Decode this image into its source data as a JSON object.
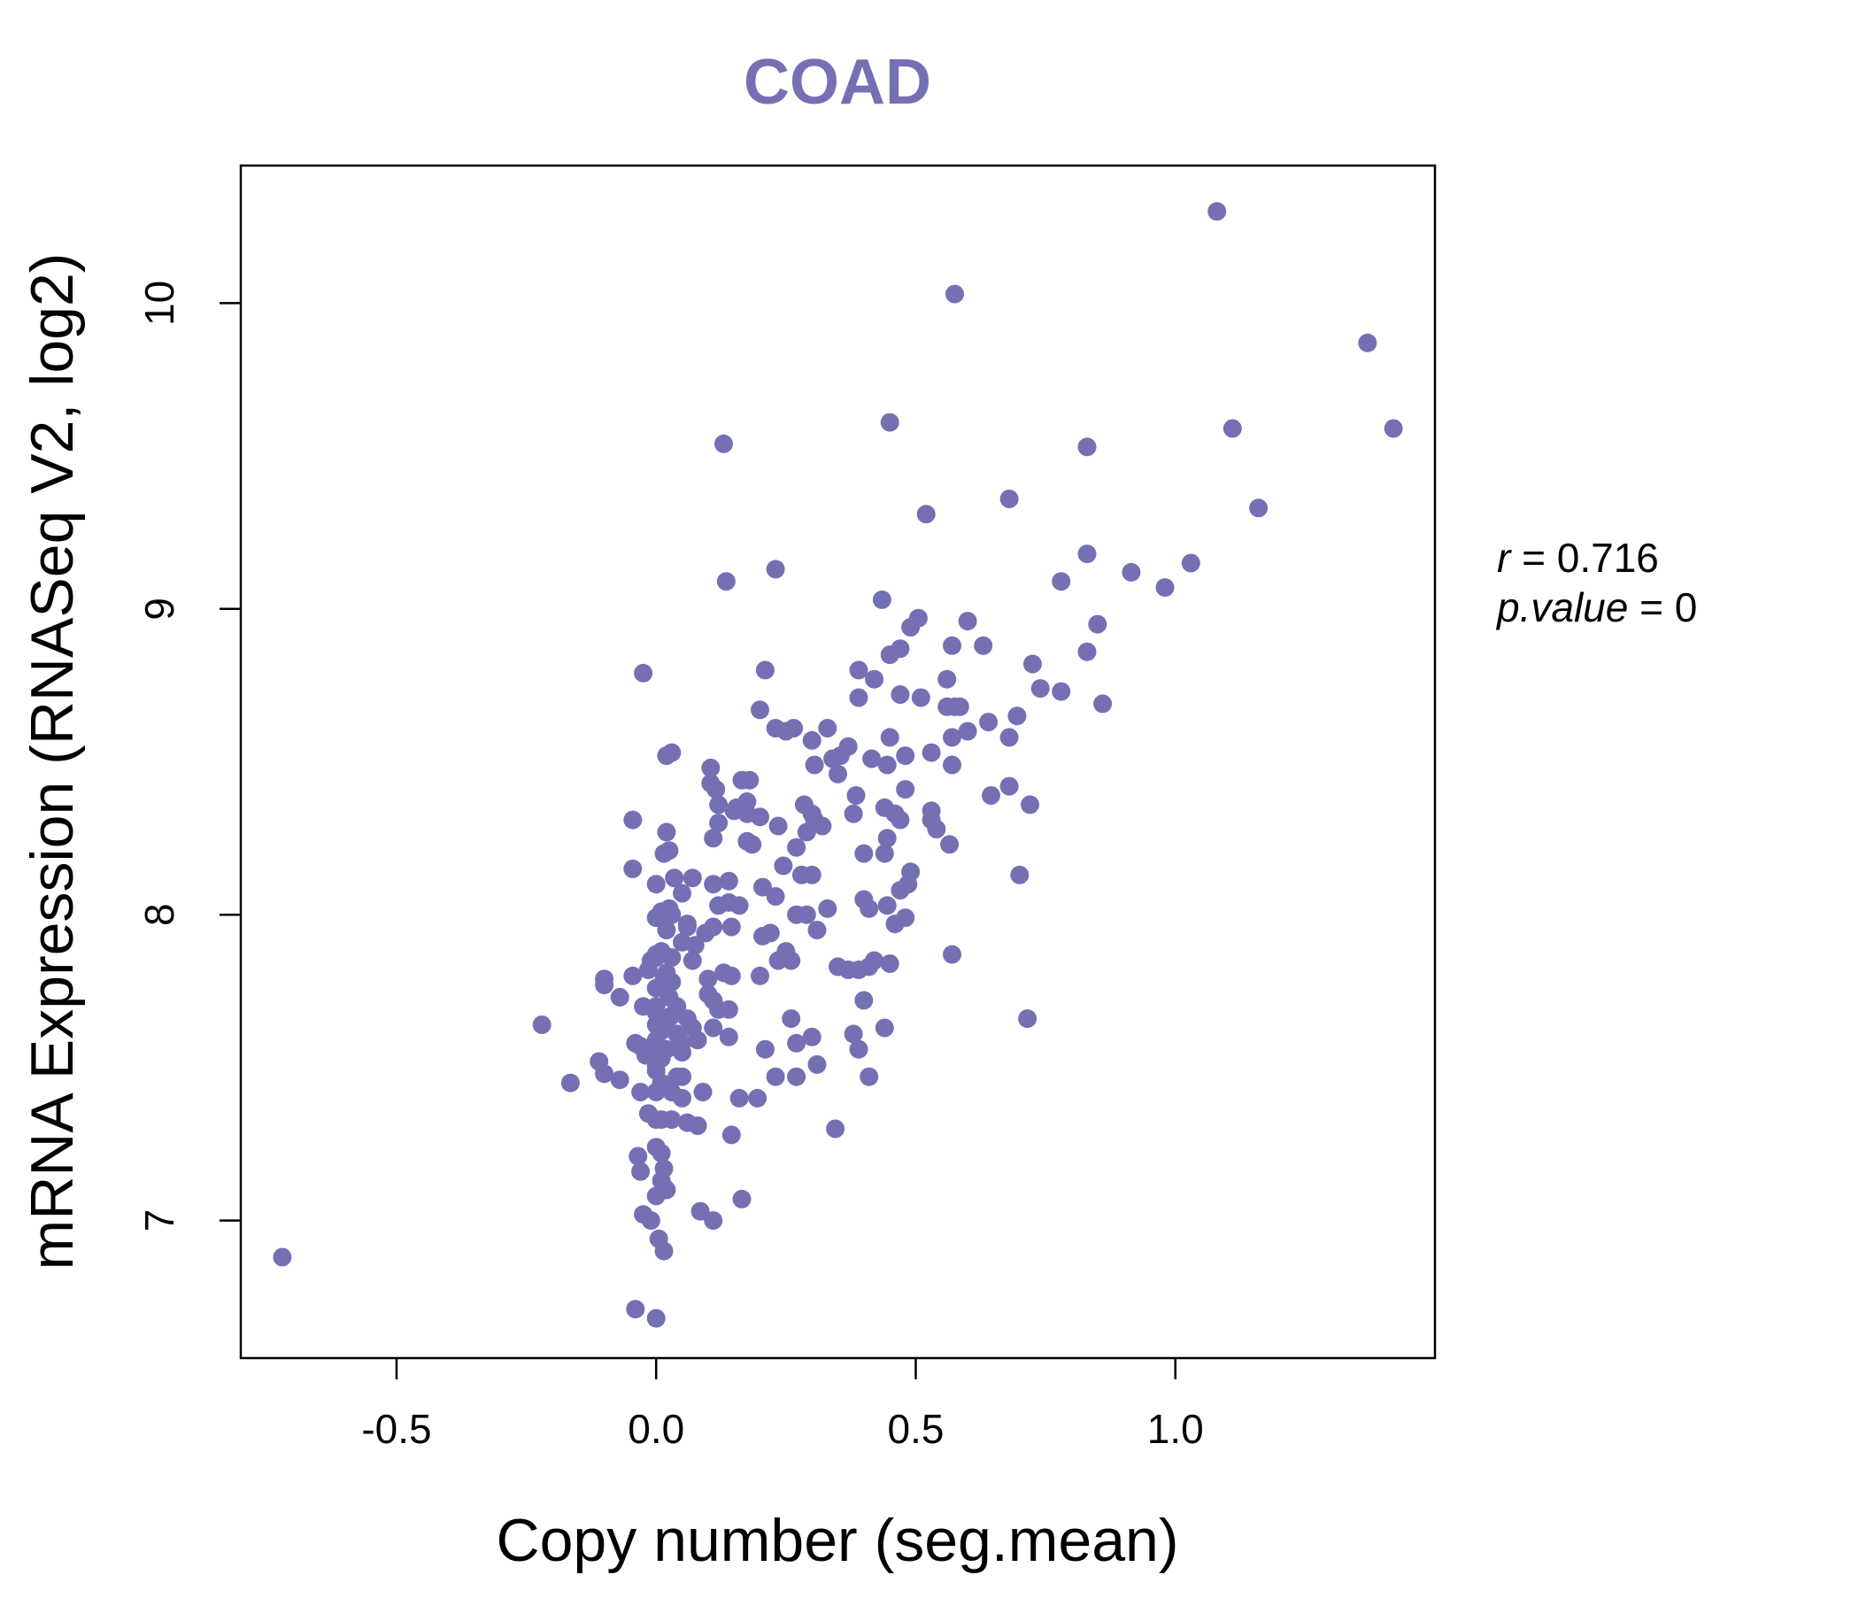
{
  "chart_data": {
    "type": "scatter",
    "title": "COAD",
    "xlabel": "Copy number (seg.mean)",
    "ylabel": "mRNA Expression (RNASeq V2, log2)",
    "xlim": [
      -0.8,
      1.5
    ],
    "ylim": [
      6.55,
      10.45
    ],
    "xticks": [
      -0.5,
      0.0,
      0.5,
      1.0
    ],
    "xtick_labels": [
      "-0.5",
      "0.0",
      "0.5",
      "1.0"
    ],
    "yticks": [
      7,
      8,
      9,
      10
    ],
    "ytick_labels": [
      "7",
      "8",
      "9",
      "10"
    ],
    "grid": false,
    "legend": "none",
    "color": "#7570b3",
    "stats": {
      "r_label": "r",
      "r_value": "0.716",
      "p_label": "p.value",
      "p_value": "0"
    },
    "points": [
      [
        1.08,
        10.3
      ],
      [
        0.575,
        10.03
      ],
      [
        1.37,
        9.87
      ],
      [
        0.45,
        9.61
      ],
      [
        1.11,
        9.59
      ],
      [
        1.42,
        9.59
      ],
      [
        0.13,
        9.54
      ],
      [
        0.83,
        9.53
      ],
      [
        0.68,
        9.36
      ],
      [
        1.16,
        9.33
      ],
      [
        0.52,
        9.31
      ],
      [
        0.83,
        9.18
      ],
      [
        1.03,
        9.15
      ],
      [
        0.23,
        9.13
      ],
      [
        0.915,
        9.12
      ],
      [
        0.135,
        9.09
      ],
      [
        0.78,
        9.09
      ],
      [
        0.98,
        9.07
      ],
      [
        0.435,
        9.03
      ],
      [
        0.505,
        8.97
      ],
      [
        0.6,
        8.96
      ],
      [
        0.85,
        8.95
      ],
      [
        0.49,
        8.94
      ],
      [
        0.57,
        8.88
      ],
      [
        0.63,
        8.88
      ],
      [
        0.47,
        8.87
      ],
      [
        0.45,
        8.85
      ],
      [
        0.83,
        8.86
      ],
      [
        0.39,
        8.8
      ],
      [
        0.21,
        8.8
      ],
      [
        -0.025,
        8.79
      ],
      [
        0.725,
        8.82
      ],
      [
        0.42,
        8.77
      ],
      [
        0.56,
        8.77
      ],
      [
        0.74,
        8.74
      ],
      [
        0.78,
        8.73
      ],
      [
        0.39,
        8.71
      ],
      [
        0.47,
        8.72
      ],
      [
        0.51,
        8.71
      ],
      [
        0.56,
        8.68
      ],
      [
        0.86,
        8.69
      ],
      [
        0.2,
        8.67
      ],
      [
        0.575,
        8.68
      ],
      [
        0.585,
        8.68
      ],
      [
        0.695,
        8.65
      ],
      [
        0.23,
        8.61
      ],
      [
        0.25,
        8.6
      ],
      [
        0.265,
        8.61
      ],
      [
        0.33,
        8.61
      ],
      [
        0.64,
        8.63
      ],
      [
        0.6,
        8.6
      ],
      [
        0.57,
        8.58
      ],
      [
        0.3,
        8.57
      ],
      [
        0.45,
        8.58
      ],
      [
        0.68,
        8.58
      ],
      [
        0.37,
        8.55
      ],
      [
        0.355,
        8.52
      ],
      [
        0.34,
        8.51
      ],
      [
        0.415,
        8.51
      ],
      [
        0.48,
        8.52
      ],
      [
        0.53,
        8.53
      ],
      [
        0.02,
        8.52
      ],
      [
        0.03,
        8.53
      ],
      [
        0.105,
        8.48
      ],
      [
        0.305,
        8.49
      ],
      [
        0.445,
        8.49
      ],
      [
        0.57,
        8.49
      ],
      [
        0.35,
        8.46
      ],
      [
        0.165,
        8.44
      ],
      [
        0.18,
        8.44
      ],
      [
        0.105,
        8.43
      ],
      [
        0.115,
        8.41
      ],
      [
        0.68,
        8.42
      ],
      [
        0.48,
        8.41
      ],
      [
        0.385,
        8.39
      ],
      [
        0.645,
        8.39
      ],
      [
        0.12,
        8.36
      ],
      [
        0.15,
        8.34
      ],
      [
        0.155,
        8.35
      ],
      [
        0.175,
        8.37
      ],
      [
        0.285,
        8.36
      ],
      [
        0.44,
        8.35
      ],
      [
        0.72,
        8.36
      ],
      [
        0.175,
        8.33
      ],
      [
        0.3,
        8.33
      ],
      [
        0.38,
        8.33
      ],
      [
        0.46,
        8.33
      ],
      [
        0.53,
        8.34
      ],
      [
        -0.045,
        8.31
      ],
      [
        0.2,
        8.32
      ],
      [
        0.305,
        8.31
      ],
      [
        0.47,
        8.31
      ],
      [
        0.53,
        8.31
      ],
      [
        0.12,
        8.3
      ],
      [
        0.235,
        8.29
      ],
      [
        0.32,
        8.29
      ],
      [
        0.29,
        8.27
      ],
      [
        0.54,
        8.28
      ],
      [
        0.02,
        8.27
      ],
      [
        0.11,
        8.25
      ],
      [
        0.175,
        8.24
      ],
      [
        0.445,
        8.25
      ],
      [
        0.565,
        8.23
      ],
      [
        0.185,
        8.23
      ],
      [
        0.27,
        8.22
      ],
      [
        0.015,
        8.2
      ],
      [
        0.025,
        8.21
      ],
      [
        0.4,
        8.2
      ],
      [
        0.44,
        8.2
      ],
      [
        -0.045,
        8.15
      ],
      [
        0.245,
        8.16
      ],
      [
        0.49,
        8.14
      ],
      [
        0.3,
        8.13
      ],
      [
        0.035,
        8.12
      ],
      [
        0.07,
        8.12
      ],
      [
        0.14,
        8.11
      ],
      [
        0.28,
        8.13
      ],
      [
        0.7,
        8.13
      ],
      [
        0.0,
        8.1
      ],
      [
        0.11,
        8.1
      ],
      [
        0.205,
        8.09
      ],
      [
        0.485,
        8.1
      ],
      [
        0.05,
        8.07
      ],
      [
        0.23,
        8.06
      ],
      [
        0.47,
        8.08
      ],
      [
        0.4,
        8.05
      ],
      [
        0.14,
        8.04
      ],
      [
        0.16,
        8.03
      ],
      [
        0.12,
        8.03
      ],
      [
        0.445,
        8.03
      ],
      [
        0.41,
        8.02
      ],
      [
        0.33,
        8.02
      ],
      [
        0.01,
        8.01
      ],
      [
        0.025,
        8.02
      ],
      [
        0.03,
        8.0
      ],
      [
        0.29,
        8.0
      ],
      [
        0.0,
        7.99
      ],
      [
        0.27,
        8.0
      ],
      [
        0.48,
        7.99
      ],
      [
        0.06,
        7.97
      ],
      [
        0.06,
        7.96
      ],
      [
        0.11,
        7.96
      ],
      [
        0.145,
        7.96
      ],
      [
        0.46,
        7.97
      ],
      [
        0.02,
        7.95
      ],
      [
        0.095,
        7.94
      ],
      [
        0.22,
        7.94
      ],
      [
        0.31,
        7.95
      ],
      [
        0.205,
        7.93
      ],
      [
        0.05,
        7.91
      ],
      [
        0.075,
        7.9
      ],
      [
        0.01,
        7.88
      ],
      [
        0.0,
        7.87
      ],
      [
        0.25,
        7.88
      ],
      [
        0.57,
        7.87
      ],
      [
        0.0,
        7.86
      ],
      [
        0.03,
        7.86
      ],
      [
        0.07,
        7.85
      ],
      [
        -0.01,
        7.85
      ],
      [
        0.235,
        7.85
      ],
      [
        0.26,
        7.85
      ],
      [
        0.42,
        7.85
      ],
      [
        0.45,
        7.84
      ],
      [
        0.35,
        7.83
      ],
      [
        0.41,
        7.83
      ],
      [
        0.37,
        7.82
      ],
      [
        0.39,
        7.82
      ],
      [
        -0.015,
        7.82
      ],
      [
        0.02,
        7.81
      ],
      [
        0.13,
        7.81
      ],
      [
        0.145,
        7.8
      ],
      [
        0.1,
        7.79
      ],
      [
        0.2,
        7.8
      ],
      [
        -0.045,
        7.8
      ],
      [
        0.015,
        7.79
      ],
      [
        0.03,
        7.78
      ],
      [
        -0.1,
        7.79
      ],
      [
        -0.1,
        7.77
      ],
      [
        0.0,
        7.76
      ],
      [
        0.02,
        7.75
      ],
      [
        0.1,
        7.74
      ],
      [
        -0.07,
        7.73
      ],
      [
        0.025,
        7.73
      ],
      [
        0.11,
        7.72
      ],
      [
        0.4,
        7.72
      ],
      [
        0.0,
        7.7
      ],
      [
        -0.025,
        7.7
      ],
      [
        0.04,
        7.7
      ],
      [
        0.12,
        7.69
      ],
      [
        0.14,
        7.69
      ],
      [
        0.0,
        7.68
      ],
      [
        0.03,
        7.67
      ],
      [
        0.06,
        7.66
      ],
      [
        0.26,
        7.66
      ],
      [
        0.715,
        7.66
      ],
      [
        -0.22,
        7.64
      ],
      [
        0.0,
        7.64
      ],
      [
        0.02,
        7.63
      ],
      [
        0.07,
        7.63
      ],
      [
        0.11,
        7.63
      ],
      [
        0.44,
        7.63
      ],
      [
        0.01,
        7.62
      ],
      [
        0.04,
        7.61
      ],
      [
        0.14,
        7.6
      ],
      [
        0.3,
        7.6
      ],
      [
        0.0,
        7.59
      ],
      [
        0.05,
        7.58
      ],
      [
        0.38,
        7.61
      ],
      [
        0.08,
        7.59
      ],
      [
        -0.04,
        7.58
      ],
      [
        0.27,
        7.58
      ],
      [
        -0.03,
        7.57
      ],
      [
        0.0,
        7.56
      ],
      [
        0.02,
        7.56
      ],
      [
        0.21,
        7.56
      ],
      [
        0.05,
        7.55
      ],
      [
        0.39,
        7.56
      ],
      [
        -0.02,
        7.54
      ],
      [
        0.01,
        7.53
      ],
      [
        -0.11,
        7.52
      ],
      [
        0.0,
        7.51
      ],
      [
        0.31,
        7.51
      ],
      [
        -0.1,
        7.48
      ],
      [
        0.0,
        7.49
      ],
      [
        0.04,
        7.47
      ],
      [
        0.05,
        7.47
      ],
      [
        0.23,
        7.47
      ],
      [
        0.27,
        7.47
      ],
      [
        0.41,
        7.47
      ],
      [
        -0.07,
        7.46
      ],
      [
        -0.165,
        7.45
      ],
      [
        0.01,
        7.45
      ],
      [
        0.0,
        7.42
      ],
      [
        0.03,
        7.42
      ],
      [
        -0.03,
        7.42
      ],
      [
        0.09,
        7.42
      ],
      [
        0.16,
        7.4
      ],
      [
        0.195,
        7.4
      ],
      [
        0.05,
        7.4
      ],
      [
        -0.015,
        7.35
      ],
      [
        0.0,
        7.33
      ],
      [
        0.01,
        7.33
      ],
      [
        0.03,
        7.33
      ],
      [
        0.06,
        7.32
      ],
      [
        0.08,
        7.31
      ],
      [
        0.345,
        7.3
      ],
      [
        0.145,
        7.28
      ],
      [
        0.0,
        7.24
      ],
      [
        0.01,
        7.22
      ],
      [
        -0.035,
        7.21
      ],
      [
        0.015,
        7.17
      ],
      [
        -0.03,
        7.16
      ],
      [
        0.01,
        7.13
      ],
      [
        0.015,
        7.11
      ],
      [
        0.02,
        7.1
      ],
      [
        0.0,
        7.08
      ],
      [
        0.165,
        7.07
      ],
      [
        0.085,
        7.03
      ],
      [
        -0.025,
        7.02
      ],
      [
        0.11,
        7.0
      ],
      [
        -0.01,
        7.0
      ],
      [
        0.005,
        6.94
      ],
      [
        0.015,
        6.9
      ],
      [
        -0.72,
        6.88
      ],
      [
        -0.04,
        6.71
      ],
      [
        0.0,
        6.68
      ]
    ]
  }
}
